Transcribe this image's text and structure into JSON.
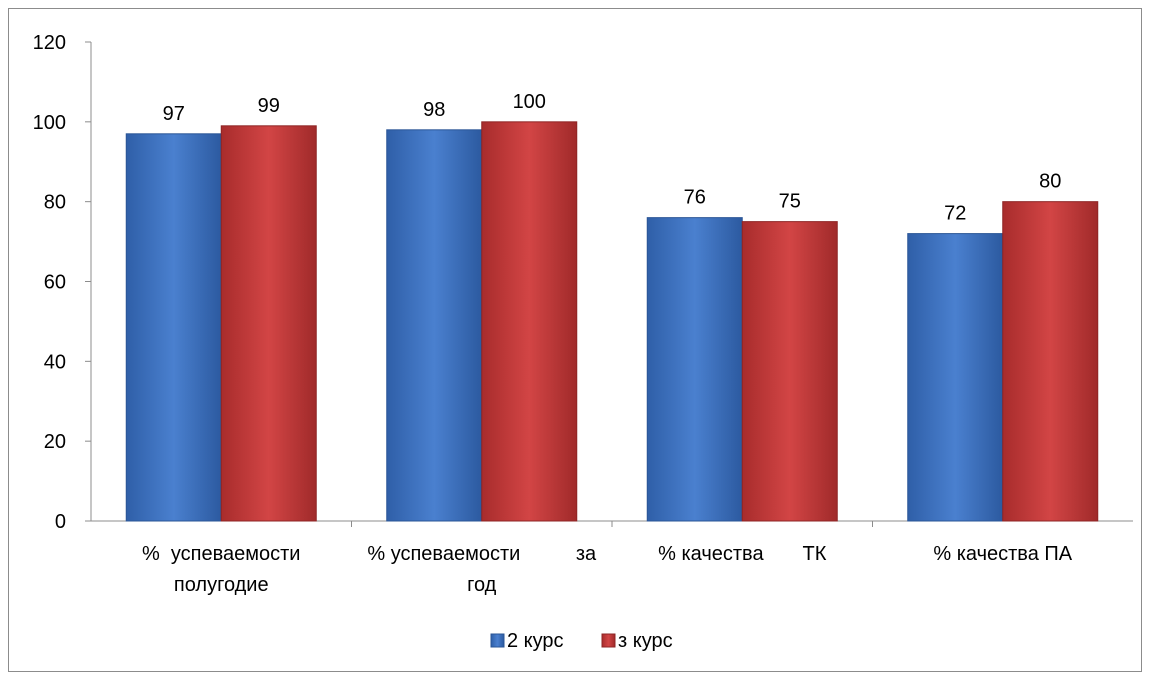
{
  "chart_data": {
    "type": "bar",
    "categories": [
      [
        "%  успеваемости",
        "полугодие"
      ],
      [
        "% успеваемости          за",
        "год"
      ],
      [
        "% качества       ТК"
      ],
      [
        "% качества ПА"
      ]
    ],
    "series": [
      {
        "name": "2 курс",
        "values": [
          97,
          98,
          76,
          72
        ],
        "color": "#3f76c6"
      },
      {
        "name": "з курс",
        "values": [
          99,
          100,
          75,
          80
        ],
        "color": "#c83a3a"
      }
    ],
    "ylim": [
      0,
      120
    ],
    "yticks": [
      0,
      20,
      40,
      60,
      80,
      100,
      120
    ],
    "grid": false,
    "legend": "bottom"
  }
}
